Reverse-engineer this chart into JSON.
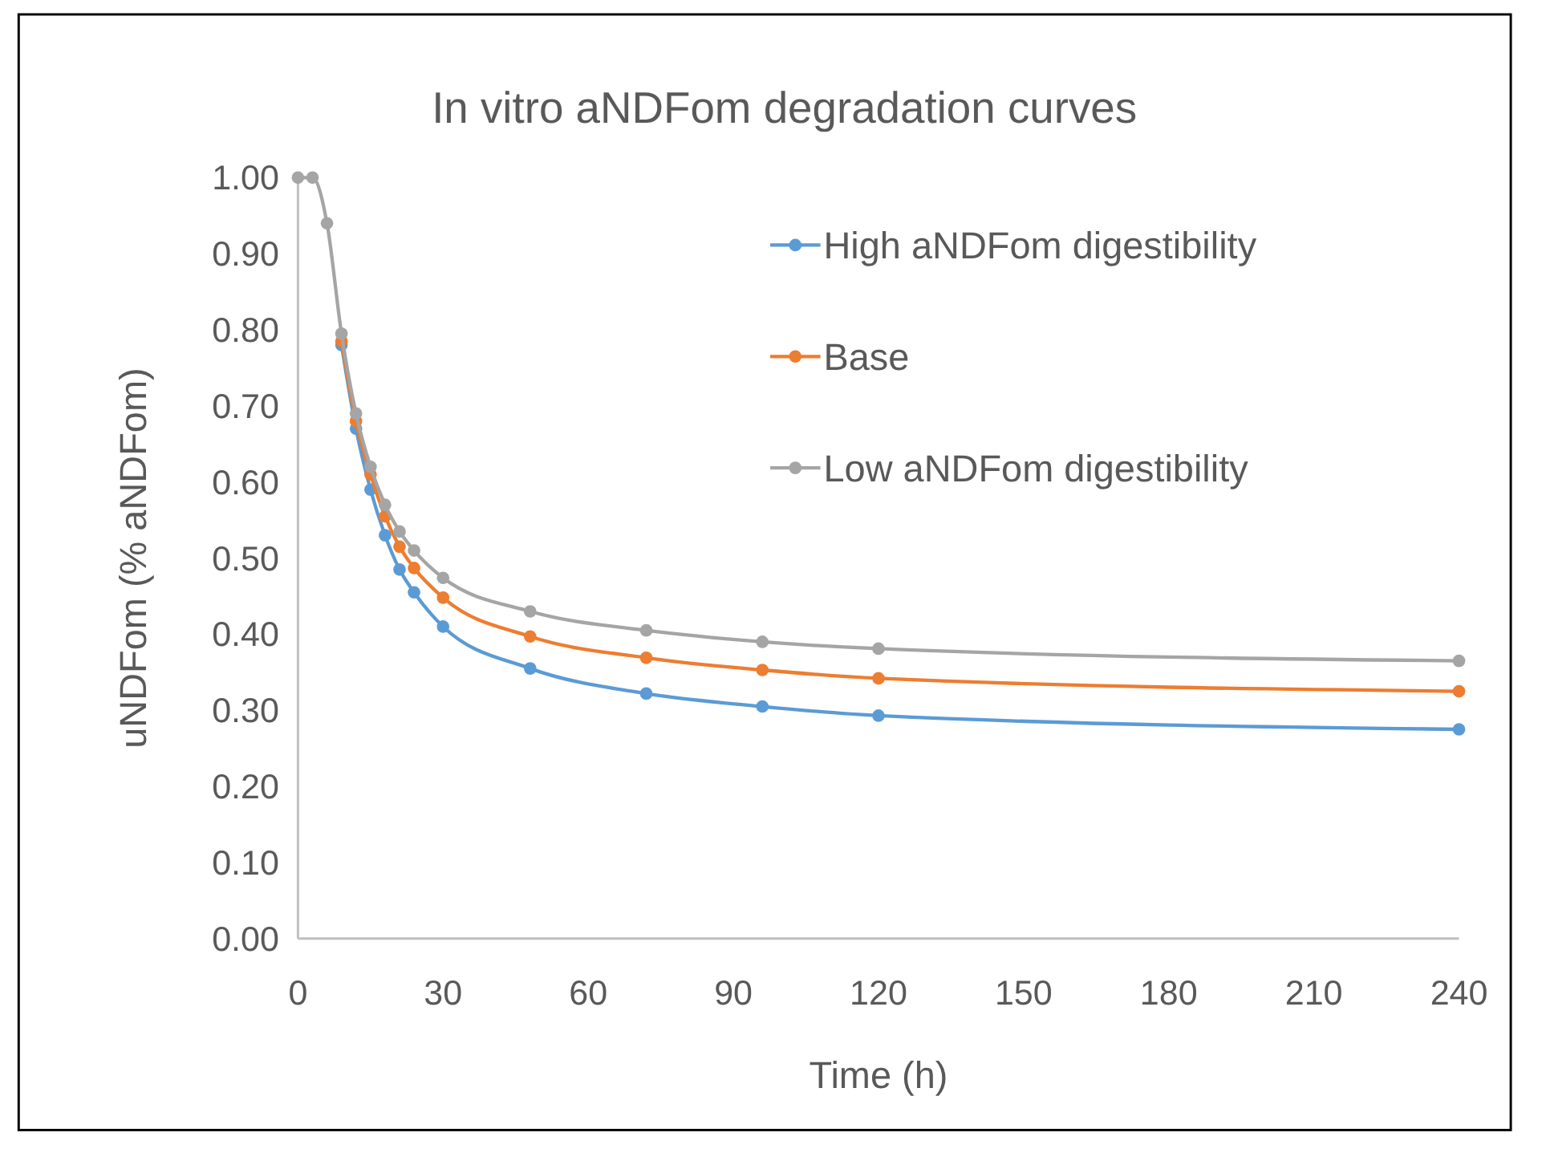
{
  "chart_data": {
    "type": "line",
    "title": "In vitro aNDFom degradation curves",
    "xlabel": "Time (h)",
    "ylabel": "uNDFom (% aNDFom)",
    "x": [
      0,
      3,
      6,
      9,
      12,
      15,
      18,
      21,
      24,
      30,
      48,
      72,
      96,
      120,
      240
    ],
    "series": [
      {
        "name": "High aNDFom digestibility",
        "color": "#5b9bd5",
        "values": [
          null,
          null,
          null,
          0.78,
          0.67,
          0.59,
          0.53,
          0.485,
          0.455,
          0.41,
          0.355,
          0.322,
          0.305,
          0.293,
          0.275
        ]
      },
      {
        "name": "Base",
        "color": "#ed7d31",
        "values": [
          null,
          null,
          null,
          0.785,
          0.68,
          0.61,
          0.555,
          0.515,
          0.487,
          0.448,
          0.397,
          0.369,
          0.353,
          0.342,
          0.325
        ]
      },
      {
        "name": "Low aNDFom digestibility",
        "color": "#a5a5a5",
        "values": [
          1.0,
          1.0,
          0.94,
          0.795,
          0.69,
          0.62,
          0.57,
          0.535,
          0.51,
          0.474,
          0.43,
          0.405,
          0.39,
          0.381,
          0.365
        ]
      }
    ],
    "xlim": [
      0,
      240
    ],
    "xticks": [
      0,
      30,
      60,
      90,
      120,
      150,
      180,
      210,
      240
    ],
    "ylim": [
      0,
      1
    ],
    "yticks": [
      {
        "value": 0,
        "label": "0.00"
      },
      {
        "value": 0.1,
        "label": "0.10"
      },
      {
        "value": 0.2,
        "label": "0.20"
      },
      {
        "value": 0.3,
        "label": "0.30"
      },
      {
        "value": 0.4,
        "label": "0.40"
      },
      {
        "value": 0.5,
        "label": "0.50"
      },
      {
        "value": 0.6,
        "label": "0.60"
      },
      {
        "value": 0.7,
        "label": "0.70"
      },
      {
        "value": 0.8,
        "label": "0.80"
      },
      {
        "value": 0.9,
        "label": "0.90"
      },
      {
        "value": 1,
        "label": "1.00"
      }
    ],
    "grid": false,
    "legend": "top right",
    "marker": "circle",
    "line_style": "solid"
  }
}
